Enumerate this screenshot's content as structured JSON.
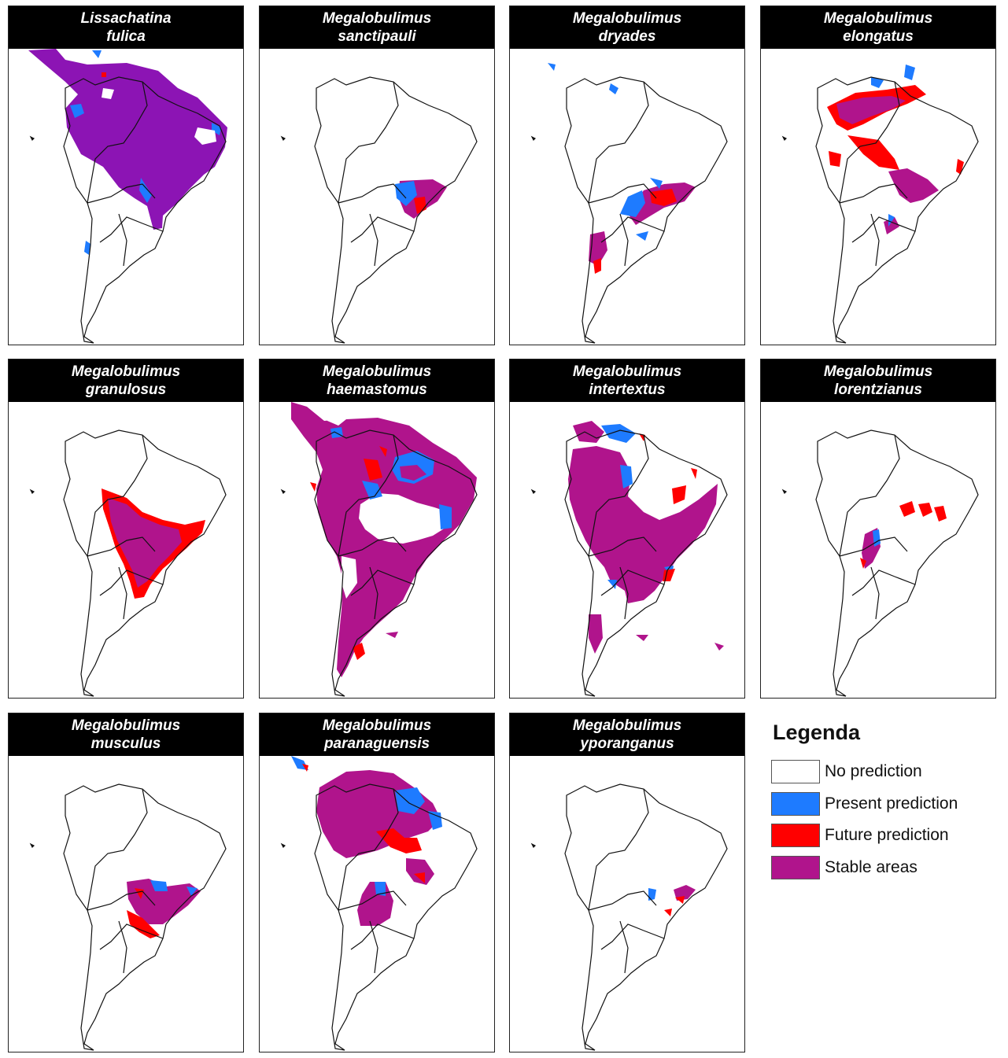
{
  "colors": {
    "no_prediction": "#ffffff",
    "present": "#1e7bff",
    "future": "#ff0000",
    "stable": "#b0148c",
    "lissachatina_stable": "#8c14b4"
  },
  "panels": [
    {
      "title_line1": "Lissachatina",
      "title_line2": "fulica"
    },
    {
      "title_line1": "Megalobulimus",
      "title_line2": "sanctipauli"
    },
    {
      "title_line1": "Megalobulimus",
      "title_line2": "dryades"
    },
    {
      "title_line1": "Megalobulimus",
      "title_line2": "elongatus"
    },
    {
      "title_line1": "Megalobulimus",
      "title_line2": "granulosus"
    },
    {
      "title_line1": "Megalobulimus",
      "title_line2": "haemastomus"
    },
    {
      "title_line1": "Megalobulimus",
      "title_line2": "intertextus"
    },
    {
      "title_line1": "Megalobulimus",
      "title_line2": "lorentzianus"
    },
    {
      "title_line1": "Megalobulimus",
      "title_line2": "musculus"
    },
    {
      "title_line1": "Megalobulimus",
      "title_line2": "paranaguensis"
    },
    {
      "title_line1": "Megalobulimus",
      "title_line2": "yporanganus"
    }
  ],
  "legend": {
    "title": "Legenda",
    "items": [
      {
        "label": "No prediction",
        "key": "no_prediction"
      },
      {
        "label": "Present prediction",
        "key": "present"
      },
      {
        "label": "Future prediction",
        "key": "future"
      },
      {
        "label": "Stable areas",
        "key": "stable"
      }
    ]
  }
}
